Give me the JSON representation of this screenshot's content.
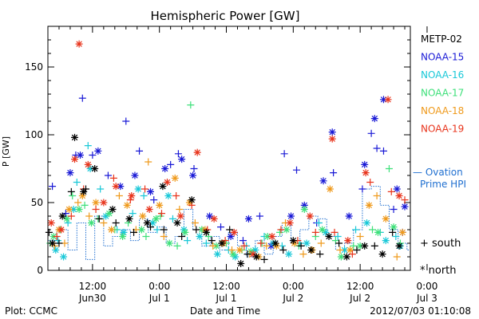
{
  "footer": {
    "left": "Plot: CCMC",
    "right": "2012/07/03 01:10:08"
  },
  "symbols": {
    "south": "+",
    "north": "*"
  },
  "colors": {
    "METP-02": "#000000",
    "NOAA-15": "#1a1ad6",
    "NOAA-16": "#19c8d8",
    "NOAA-17": "#3ee07a",
    "NOAA-18": "#ef9a1c",
    "NOAA-19": "#e8341c",
    "Ovation": "#1f6fd0"
  },
  "chart_data": {
    "type": "scatter",
    "title": "Hemispheric Power [GW]",
    "xlabel": "Date and Time",
    "ylabel": "P [GW]",
    "xlim": [
      -16,
      16.5
    ],
    "ylim": [
      0,
      180
    ],
    "yticks": [
      0,
      50,
      100,
      150
    ],
    "xticks": [
      {
        "x": -12,
        "label1": "12:00",
        "label2": "Jun30"
      },
      {
        "x": -6,
        "label1": "0:00",
        "label2": "Jul 1"
      },
      {
        "x": 0,
        "label1": "12:00",
        "label2": "Jul 1"
      },
      {
        "x": 6,
        "label1": "0:00",
        "label2": "Jul 2"
      },
      {
        "x": 12,
        "label1": "12:00",
        "label2": "Jul 2"
      },
      {
        "x": 18,
        "label1": "0:00",
        "label2": "Jul 3"
      }
    ],
    "x_unit_note": "x in hours relative to 2012-07-01 12:00",
    "legend": [
      {
        "name": "METP-02",
        "color": "#000000"
      },
      {
        "name": "NOAA-15",
        "color": "#1a1ad6"
      },
      {
        "name": "NOAA-16",
        "color": "#19c8d8"
      },
      {
        "name": "NOAA-17",
        "color": "#3ee07a"
      },
      {
        "name": "NOAA-18",
        "color": "#ef9a1c"
      },
      {
        "name": "NOAA-19",
        "color": "#e8341c"
      }
    ],
    "ovation": {
      "label": "— Ovation Prime HPI",
      "color": "#1f6fd0",
      "x": [
        -16,
        -15.2,
        -14.2,
        -13.4,
        -12.6,
        -11.8,
        -11,
        -10.2,
        -9.4,
        -8.6,
        -7.8,
        -7,
        -6.2,
        -5.4,
        -4.6,
        -3.8,
        -3,
        -2.2,
        -1.4,
        -0.6,
        0.2,
        1,
        1.8,
        2.6,
        3.4,
        4.2,
        5,
        5.8,
        6.6,
        7.4,
        8.2,
        9,
        9.8,
        10.6,
        11.4,
        12.2,
        13,
        13.8,
        14.6,
        15.4,
        16.2
      ],
      "y": [
        22,
        30,
        15,
        35,
        8,
        40,
        18,
        25,
        30,
        22,
        38,
        28,
        32,
        20,
        25,
        45,
        30,
        18,
        25,
        15,
        28,
        18,
        10,
        22,
        12,
        25,
        35,
        20,
        30,
        40,
        38,
        25,
        15,
        20,
        30,
        60,
        62,
        48,
        30,
        20,
        15
      ]
    },
    "series": [
      {
        "name": "NOAA-15",
        "color": "#1a1ad6",
        "south": [
          [
            -15.6,
            62
          ],
          [
            -14.4,
            42
          ],
          [
            -13.5,
            85
          ],
          [
            -12.9,
            127
          ],
          [
            -12.0,
            85
          ],
          [
            -10.6,
            70
          ],
          [
            -9.0,
            110
          ],
          [
            -7.8,
            88
          ],
          [
            -6.5,
            52
          ],
          [
            -5.0,
            78
          ],
          [
            -4.3,
            86
          ],
          [
            -2.9,
            75
          ],
          [
            -0.5,
            32
          ],
          [
            1.5,
            22
          ],
          [
            3.0,
            40
          ],
          [
            5.2,
            86
          ],
          [
            6.3,
            74
          ],
          [
            8.1,
            35
          ],
          [
            9.6,
            72
          ],
          [
            12.2,
            60
          ],
          [
            13.0,
            101
          ],
          [
            13.5,
            90
          ],
          [
            14.1,
            88
          ],
          [
            15.0,
            45
          ],
          [
            15.8,
            28
          ]
        ],
        "north": [
          [
            -14.0,
            72
          ],
          [
            -13.1,
            85
          ],
          [
            -11.5,
            88
          ],
          [
            -9.5,
            62
          ],
          [
            -8.2,
            70
          ],
          [
            -6.8,
            58
          ],
          [
            -5.5,
            75
          ],
          [
            -4.0,
            82
          ],
          [
            -3.0,
            70
          ],
          [
            -1.5,
            40
          ],
          [
            0.4,
            25
          ],
          [
            2.0,
            38
          ],
          [
            4.0,
            18
          ],
          [
            5.8,
            40
          ],
          [
            7.0,
            48
          ],
          [
            8.7,
            66
          ],
          [
            9.5,
            102
          ],
          [
            11.0,
            40
          ],
          [
            12.4,
            78
          ],
          [
            13.3,
            112
          ],
          [
            14.1,
            126
          ],
          [
            15.3,
            60
          ],
          [
            16.0,
            47
          ]
        ]
      },
      {
        "name": "NOAA-16",
        "color": "#19c8d8",
        "south": [
          [
            -15.1,
            22
          ],
          [
            -14.2,
            35
          ],
          [
            -13.4,
            65
          ],
          [
            -12.4,
            92
          ],
          [
            -11.3,
            60
          ],
          [
            -9.8,
            30
          ],
          [
            -8.4,
            42
          ],
          [
            -7.4,
            55
          ],
          [
            -6.2,
            30
          ],
          [
            -4.8,
            38
          ],
          [
            -3.5,
            22
          ],
          [
            -1.8,
            20
          ],
          [
            0.2,
            15
          ],
          [
            1.8,
            18
          ],
          [
            3.4,
            25
          ],
          [
            5.0,
            18
          ],
          [
            6.6,
            20
          ],
          [
            8.3,
            35
          ],
          [
            10.0,
            25
          ],
          [
            11.6,
            30
          ],
          [
            13.8,
            28
          ],
          [
            15.2,
            25
          ]
        ],
        "north": [
          [
            -15.3,
            15
          ],
          [
            -14.6,
            10
          ],
          [
            -13.7,
            45
          ],
          [
            -12.2,
            75
          ],
          [
            -10.8,
            40
          ],
          [
            -9.2,
            28
          ],
          [
            -7.9,
            60
          ],
          [
            -6.6,
            35
          ],
          [
            -5.2,
            55
          ],
          [
            -3.8,
            30
          ],
          [
            -2.4,
            25
          ],
          [
            -0.8,
            12
          ],
          [
            0.8,
            10
          ],
          [
            2.6,
            15
          ],
          [
            4.2,
            20
          ],
          [
            5.6,
            12
          ],
          [
            7.2,
            20
          ],
          [
            8.9,
            28
          ],
          [
            10.6,
            15
          ],
          [
            12.6,
            35
          ],
          [
            14.3,
            22
          ],
          [
            15.6,
            18
          ]
        ]
      },
      {
        "name": "NOAA-17",
        "color": "#3ee07a",
        "south": [
          [
            -15.8,
            20
          ],
          [
            -14.9,
            30
          ],
          [
            -13.8,
            55
          ],
          [
            -12.7,
            48
          ],
          [
            -11.5,
            38
          ],
          [
            -10.0,
            30
          ],
          [
            -8.8,
            35
          ],
          [
            -7.2,
            25
          ],
          [
            -5.9,
            40
          ],
          [
            -4.4,
            18
          ],
          [
            -3.2,
            122
          ],
          [
            -1.6,
            25
          ],
          [
            0.0,
            20
          ],
          [
            1.4,
            15
          ],
          [
            3.2,
            20
          ],
          [
            4.8,
            28
          ],
          [
            6.5,
            18
          ],
          [
            8.0,
            25
          ],
          [
            9.8,
            22
          ],
          [
            11.4,
            18
          ],
          [
            13.1,
            30
          ],
          [
            14.6,
            75
          ],
          [
            15.6,
            20
          ]
        ],
        "north": [
          [
            -15.5,
            25
          ],
          [
            -14.3,
            38
          ],
          [
            -13.2,
            45
          ],
          [
            -12.1,
            35
          ],
          [
            -10.5,
            42
          ],
          [
            -9.3,
            25
          ],
          [
            -7.6,
            30
          ],
          [
            -6.3,
            38
          ],
          [
            -5.1,
            20
          ],
          [
            -3.7,
            28
          ],
          [
            -2.2,
            30
          ],
          [
            -0.9,
            18
          ],
          [
            0.6,
            12
          ],
          [
            2.2,
            14
          ],
          [
            3.7,
            25
          ],
          [
            5.4,
            30
          ],
          [
            7.0,
            45
          ],
          [
            8.6,
            30
          ],
          [
            10.3,
            10
          ],
          [
            12.0,
            18
          ],
          [
            13.6,
            28
          ],
          [
            15.0,
            32
          ]
        ]
      },
      {
        "name": "NOAA-18",
        "color": "#ef9a1c",
        "south": [
          [
            -15.4,
            18
          ],
          [
            -14.5,
            20
          ],
          [
            -13.3,
            50
          ],
          [
            -12.3,
            40
          ],
          [
            -11.0,
            35
          ],
          [
            -9.6,
            55
          ],
          [
            -8.1,
            30
          ],
          [
            -7.0,
            80
          ],
          [
            -5.6,
            25
          ],
          [
            -4.2,
            45
          ],
          [
            -2.8,
            35
          ],
          [
            -1.2,
            18
          ],
          [
            0.5,
            15
          ],
          [
            2.1,
            12
          ],
          [
            3.6,
            18
          ],
          [
            5.3,
            35
          ],
          [
            6.9,
            12
          ],
          [
            8.5,
            20
          ],
          [
            10.2,
            15
          ],
          [
            12.0,
            25
          ],
          [
            13.5,
            55
          ],
          [
            15.3,
            10
          ]
        ],
        "north": [
          [
            -15.0,
            30
          ],
          [
            -14.1,
            45
          ],
          [
            -12.9,
            55
          ],
          [
            -11.7,
            50
          ],
          [
            -10.3,
            30
          ],
          [
            -8.9,
            48
          ],
          [
            -7.5,
            40
          ],
          [
            -6.0,
            48
          ],
          [
            -4.6,
            68
          ],
          [
            -3.3,
            50
          ],
          [
            -1.9,
            30
          ],
          [
            -0.3,
            20
          ],
          [
            1.2,
            15
          ],
          [
            2.9,
            10
          ],
          [
            4.5,
            18
          ],
          [
            6.1,
            20
          ],
          [
            7.7,
            15
          ],
          [
            9.3,
            60
          ],
          [
            11.1,
            15
          ],
          [
            12.8,
            48
          ],
          [
            14.3,
            38
          ],
          [
            15.8,
            28
          ]
        ]
      },
      {
        "name": "NOAA-19",
        "color": "#e8341c",
        "south": [
          [
            -15.2,
            25
          ],
          [
            -13.9,
            40
          ],
          [
            -12.8,
            60
          ],
          [
            -11.7,
            45
          ],
          [
            -10.1,
            68
          ],
          [
            -8.6,
            52
          ],
          [
            -7.3,
            60
          ],
          [
            -5.8,
            42
          ],
          [
            -4.5,
            55
          ],
          [
            -3.1,
            48
          ],
          [
            -1.7,
            30
          ],
          [
            -0.1,
            22
          ],
          [
            1.6,
            18
          ],
          [
            3.1,
            20
          ],
          [
            4.9,
            30
          ],
          [
            6.4,
            22
          ],
          [
            8.0,
            28
          ],
          [
            9.7,
            28
          ],
          [
            11.3,
            12
          ],
          [
            12.9,
            65
          ],
          [
            14.8,
            58
          ],
          [
            16.0,
            52
          ]
        ],
        "north": [
          [
            -15.7,
            35
          ],
          [
            -14.8,
            30
          ],
          [
            -13.6,
            82
          ],
          [
            -13.2,
            167
          ],
          [
            -12.4,
            78
          ],
          [
            -11.0,
            50
          ],
          [
            -9.9,
            62
          ],
          [
            -8.5,
            55
          ],
          [
            -6.9,
            45
          ],
          [
            -5.3,
            65
          ],
          [
            -4.1,
            40
          ],
          [
            -2.6,
            87
          ],
          [
            -1.1,
            38
          ],
          [
            0.7,
            28
          ],
          [
            2.4,
            12
          ],
          [
            4.1,
            25
          ],
          [
            5.7,
            35
          ],
          [
            7.5,
            40
          ],
          [
            9.5,
            97
          ],
          [
            10.9,
            22
          ],
          [
            12.5,
            72
          ],
          [
            14.5,
            126
          ],
          [
            15.5,
            55
          ]
        ]
      },
      {
        "name": "METP-02",
        "color": "#000000",
        "south": [
          [
            -15.9,
            28
          ],
          [
            -15.0,
            20
          ],
          [
            -13.9,
            58
          ],
          [
            -12.6,
            60
          ],
          [
            -11.4,
            38
          ],
          [
            -9.9,
            35
          ],
          [
            -8.3,
            28
          ],
          [
            -6.8,
            32
          ],
          [
            -5.6,
            30
          ],
          [
            -4.0,
            25
          ],
          [
            -2.7,
            30
          ],
          [
            -1.3,
            22
          ],
          [
            0.3,
            30
          ],
          [
            1.9,
            12
          ],
          [
            3.4,
            8
          ],
          [
            5.1,
            15
          ],
          [
            6.7,
            18
          ],
          [
            8.4,
            12
          ],
          [
            10.1,
            20
          ],
          [
            11.7,
            15
          ],
          [
            13.3,
            18
          ],
          [
            14.9,
            28
          ]
        ],
        "north": [
          [
            -15.6,
            20
          ],
          [
            -14.7,
            40
          ],
          [
            -13.6,
            98
          ],
          [
            -12.8,
            58
          ],
          [
            -11.8,
            75
          ],
          [
            -10.2,
            45
          ],
          [
            -8.7,
            38
          ],
          [
            -7.1,
            35
          ],
          [
            -5.7,
            62
          ],
          [
            -4.4,
            35
          ],
          [
            -3.1,
            52
          ],
          [
            -1.8,
            28
          ],
          [
            -0.4,
            20
          ],
          [
            1.3,
            5
          ],
          [
            2.7,
            10
          ],
          [
            4.4,
            20
          ],
          [
            6.0,
            22
          ],
          [
            7.6,
            15
          ],
          [
            9.2,
            25
          ],
          [
            10.8,
            10
          ],
          [
            12.4,
            18
          ],
          [
            14.0,
            12
          ],
          [
            15.5,
            18
          ]
        ]
      }
    ]
  }
}
